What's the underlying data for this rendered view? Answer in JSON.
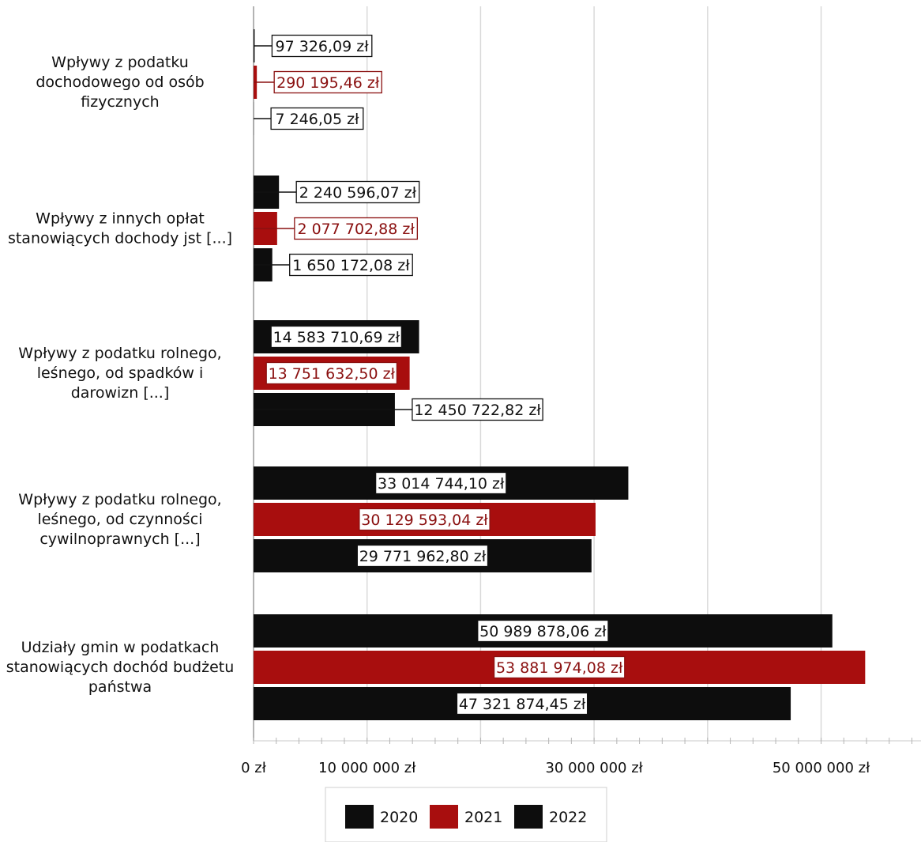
{
  "chart_data": {
    "type": "bar",
    "orientation": "horizontal",
    "categories": [
      "Wpływy z podatku dochodowego od osób fizycznych",
      "Wpływy z innych opłat stanowiących dochody jst [...]",
      "Wpływy z podatku rolnego, leśnego, od spadków i darowizn [...]",
      "Wpływy z podatku rolnego, leśnego, od czynności cywilnoprawnych [...]",
      "Udziały gmin w podatkach stanowiących dochód budżetu państwa"
    ],
    "category_lines": [
      [
        "Wpływy z podatku",
        "dochodowego od osób",
        "fizycznych"
      ],
      [
        "Wpływy z innych opłat",
        "stanowiących dochody jst [...]"
      ],
      [
        "Wpływy z podatku rolnego,",
        "leśnego, od spadków i",
        "darowizn [...]"
      ],
      [
        "Wpływy z podatku rolnego,",
        "leśnego, od czynności",
        "cywilnoprawnych [...]"
      ],
      [
        "Udziały gmin w podatkach",
        "stanowiących dochód budżetu",
        "państwa"
      ]
    ],
    "series": [
      {
        "name": "2020",
        "color": "#0d0d0d",
        "values": [
          97326.09,
          2240596.07,
          14583710.69,
          33014744.1,
          50989878.06
        ],
        "labels": [
          "97 326,09 zł",
          "2 240 596,07 zł",
          "14 583 710,69 zł",
          "33 014 744,10 zł",
          "50 989 878,06 zł"
        ]
      },
      {
        "name": "2021",
        "color": "#a80e0e",
        "values": [
          290195.46,
          2077702.88,
          13751632.5,
          30129593.04,
          53881974.08
        ],
        "labels": [
          "290 195,46 zł",
          "2 077 702,88 zł",
          "13 751 632,50 zł",
          "30 129 593,04 zł",
          "53 881 974,08 zł"
        ]
      },
      {
        "name": "2022",
        "color": "#0d0d0d",
        "values": [
          7246.05,
          1650172.08,
          12450722.82,
          29771962.8,
          47321874.45
        ],
        "labels": [
          "7 246,05 zł",
          "1 650 172,08 zł",
          "12 450 722,82 zł",
          "29 771 962,80 zł",
          "47 321 874,45 zł"
        ]
      }
    ],
    "x_ticks": [
      {
        "value": 0,
        "label": "0 zł"
      },
      {
        "value": 10000000,
        "label": "10 000 000 zł"
      },
      {
        "value": 30000000,
        "label": "30 000 000 zł"
      },
      {
        "value": 50000000,
        "label": "50 000 000 zł"
      }
    ],
    "xlim": [
      0,
      58800000
    ],
    "gridlines_at": [
      0,
      10000000,
      20000000,
      30000000,
      40000000,
      50000000
    ],
    "grid": true,
    "legend": {
      "position": "bottom",
      "entries": [
        "2020",
        "2021",
        "2022"
      ]
    },
    "title": "",
    "xlabel": "",
    "ylabel": ""
  }
}
